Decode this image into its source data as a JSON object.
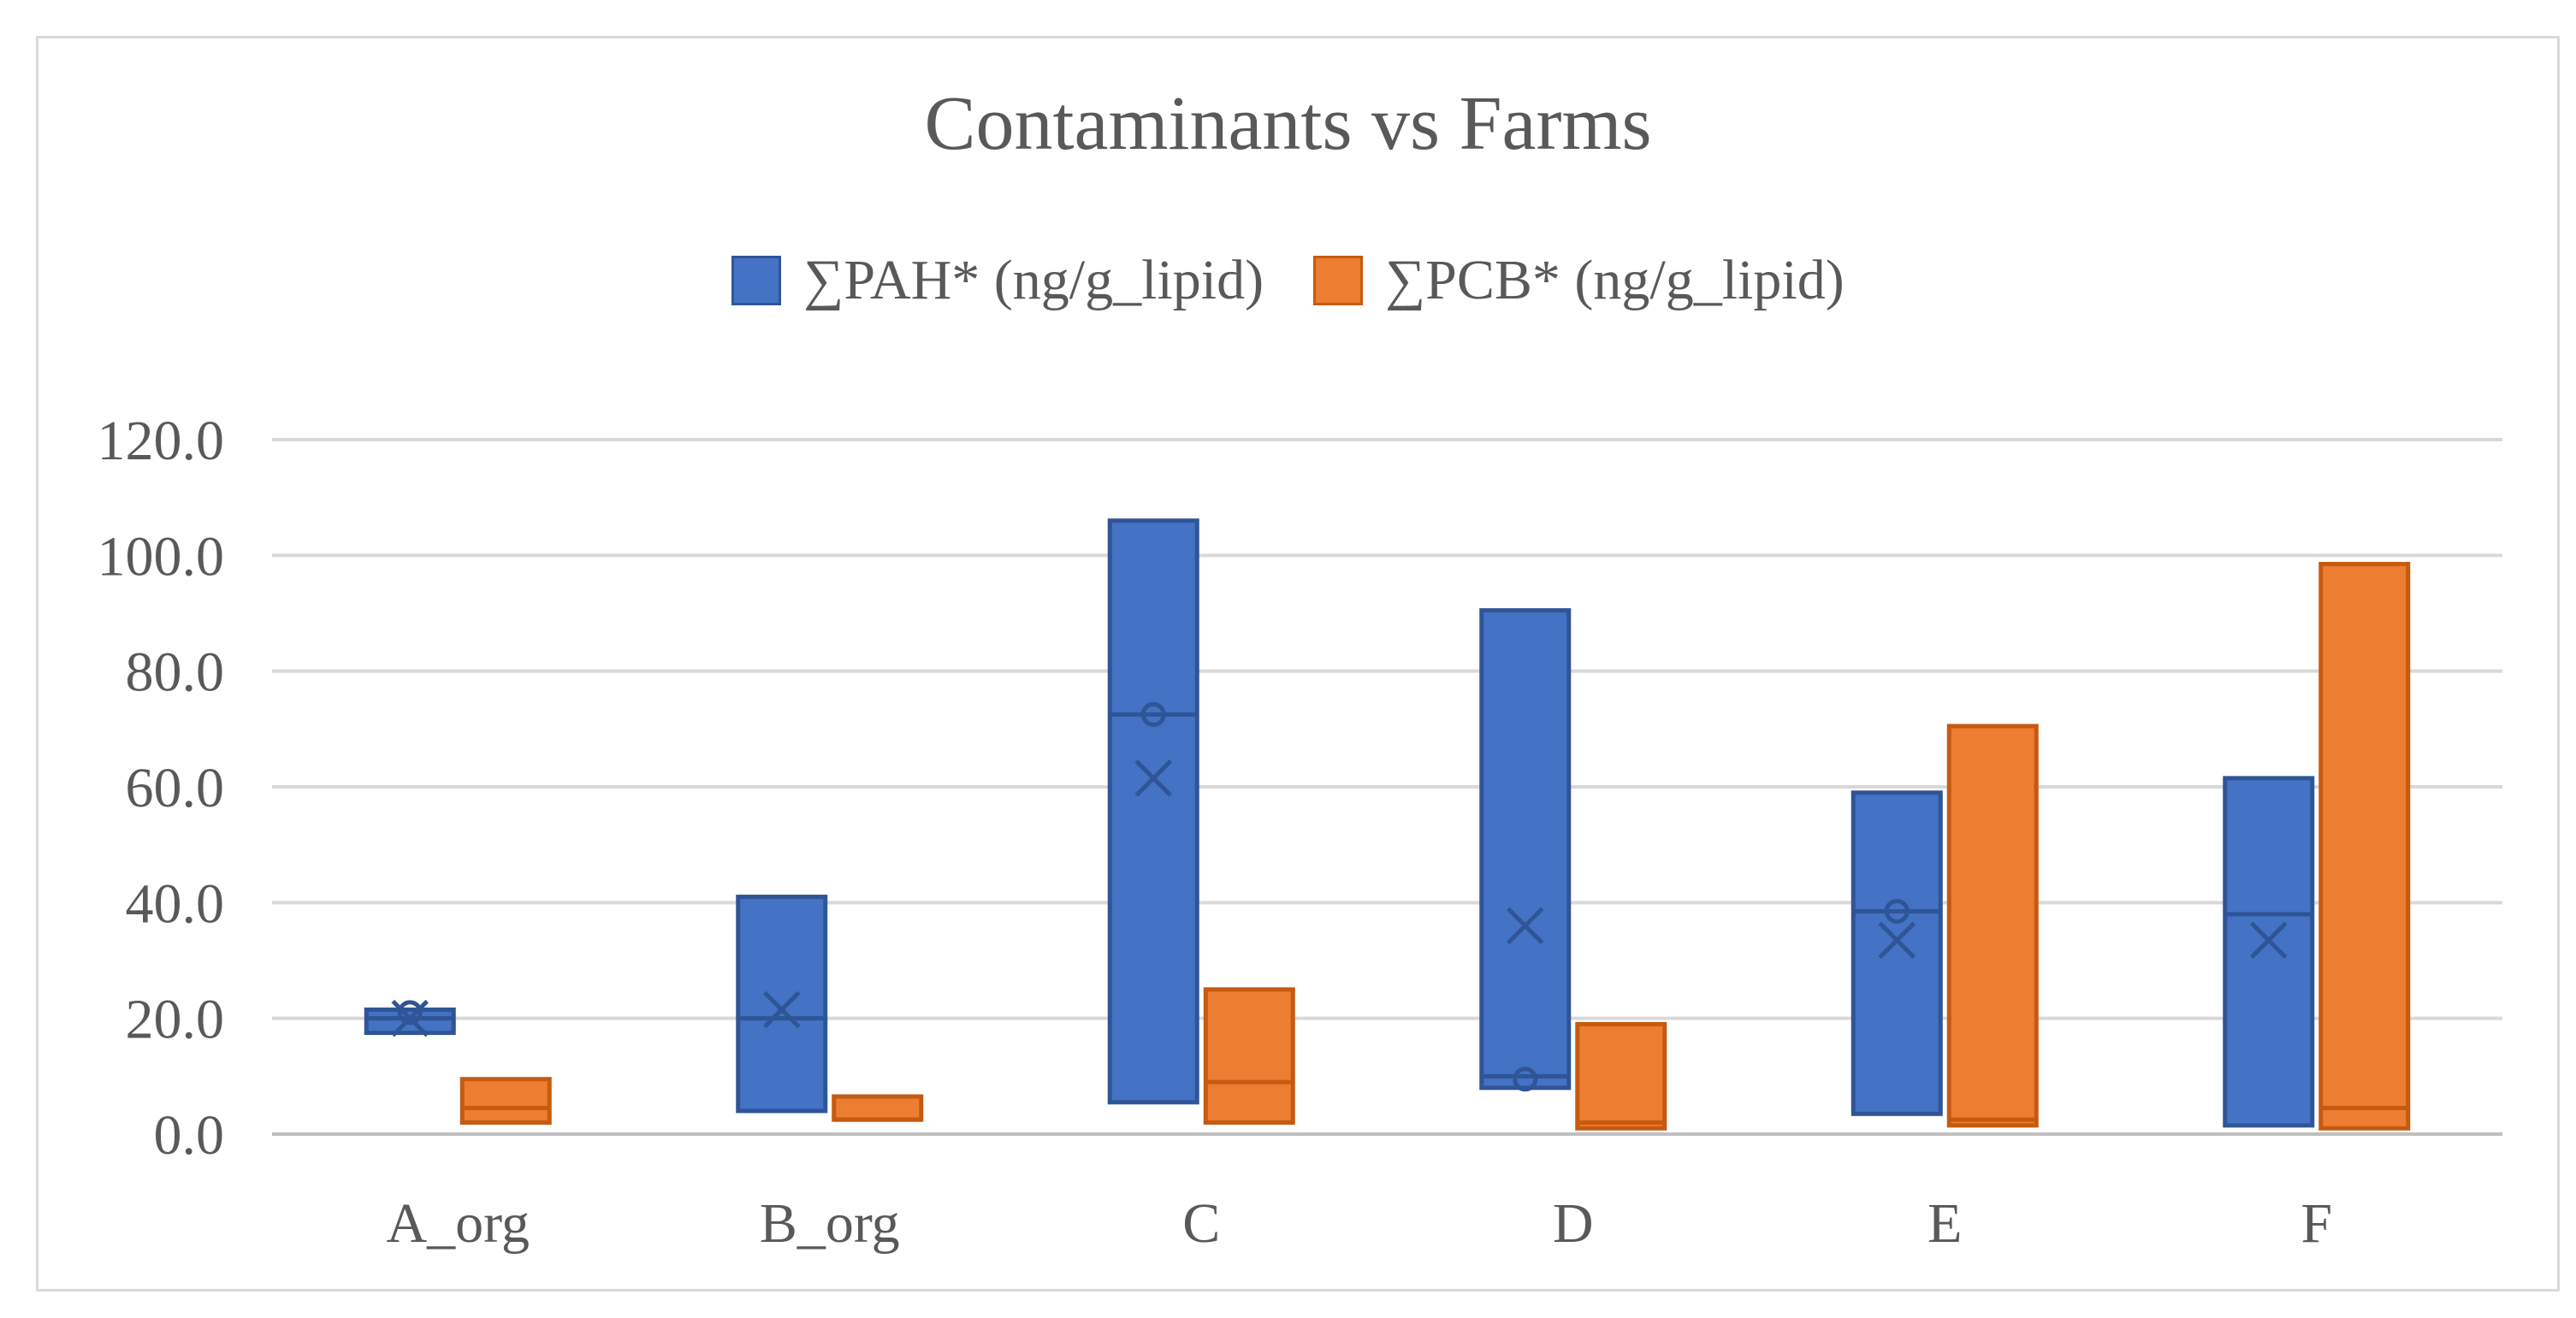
{
  "chart_data": {
    "type": "box",
    "title": "Contaminants vs Farms",
    "xlabel": "",
    "ylabel": "",
    "ylim": [
      0,
      120
    ],
    "yticks": [
      0,
      20,
      40,
      60,
      80,
      100,
      120
    ],
    "ytick_labels": [
      "0.0",
      "20.0",
      "40.0",
      "60.0",
      "80.0",
      "100.0",
      "120.0"
    ],
    "grid": true,
    "legend_position": "top",
    "categories": [
      "A_org",
      "B_org",
      "C",
      "D",
      "E",
      "F"
    ],
    "series": [
      {
        "name": "∑PAH* (ng/g_lipid)",
        "color": "#4472c4",
        "edge_color": "#2f5597",
        "boxes": [
          {
            "min": 17.5,
            "median": 20.0,
            "max": 21.5,
            "mean": 20.0,
            "outlier": 21.0
          },
          {
            "min": 4.0,
            "median": 20.0,
            "max": 41.0,
            "mean": 21.5,
            "outlier": null
          },
          {
            "min": 5.5,
            "median": 72.5,
            "max": 106.0,
            "mean": 61.5,
            "outlier": 72.5
          },
          {
            "min": 8.0,
            "median": 10.0,
            "max": 90.5,
            "mean": 36.0,
            "outlier": 9.5
          },
          {
            "min": 3.5,
            "median": 38.5,
            "max": 59.0,
            "mean": 33.5,
            "outlier": 38.5
          },
          {
            "min": 1.5,
            "median": 38.0,
            "max": 61.5,
            "mean": 33.5,
            "outlier": null
          }
        ]
      },
      {
        "name": "∑PCB* (ng/g_lipid)",
        "color": "#ed7d31",
        "edge_color": "#c55a11",
        "boxes": [
          {
            "min": 2.0,
            "median": 4.5,
            "max": 9.5,
            "mean": null,
            "outlier": null
          },
          {
            "min": 2.5,
            "median": 2.5,
            "max": 6.5,
            "mean": null,
            "outlier": null
          },
          {
            "min": 2.0,
            "median": 9.0,
            "max": 25.0,
            "mean": null,
            "outlier": null
          },
          {
            "min": 1.0,
            "median": 2.0,
            "max": 19.0,
            "mean": null,
            "outlier": null
          },
          {
            "min": 1.5,
            "median": 2.5,
            "max": 70.5,
            "mean": null,
            "outlier": null
          },
          {
            "min": 1.0,
            "median": 4.5,
            "max": 98.5,
            "mean": null,
            "outlier": null
          }
        ]
      }
    ]
  }
}
